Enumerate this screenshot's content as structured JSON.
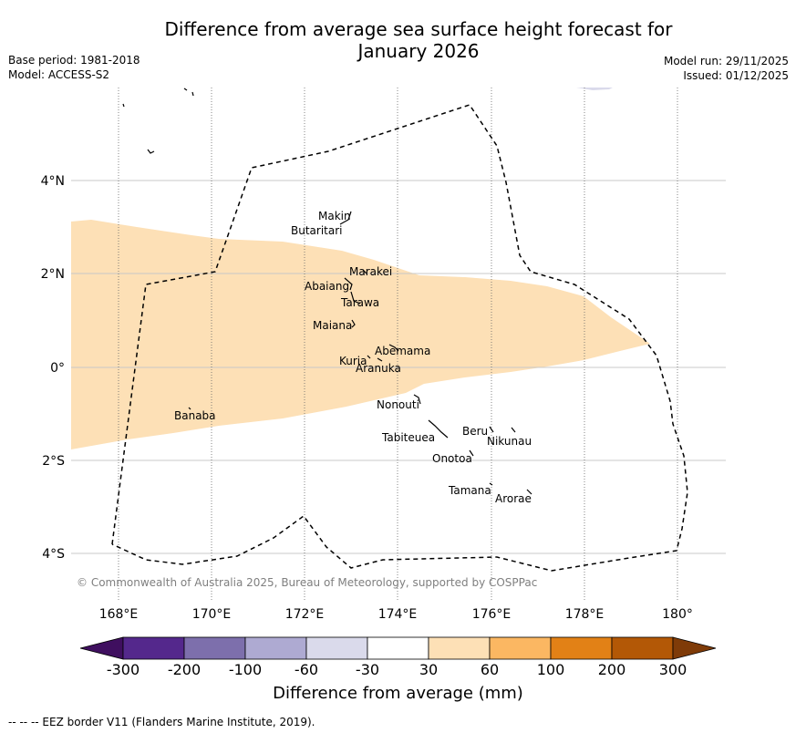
{
  "title": {
    "line1": "Difference from average sea surface height forecast for",
    "line2": "January 2026"
  },
  "meta": {
    "base_period": "Base period: 1981-2018",
    "model": "Model: ACCESS-S2",
    "model_run": "Model run: 29/11/2025",
    "issued": "Issued: 01/12/2025"
  },
  "map": {
    "lat_labels": [
      "4°N",
      "2°N",
      "0°",
      "2°S",
      "4°S"
    ],
    "lon_labels": [
      "168°E",
      "170°E",
      "172°E",
      "174°E",
      "176°E",
      "178°E",
      "180°"
    ],
    "islands": [
      "Makin",
      "Butaritari",
      "Marakei",
      "Abaiang",
      "Tarawa",
      "Maiana",
      "Abemama",
      "Kuria",
      "Aranuka",
      "Banaba",
      "Nonouti",
      "Beru",
      "Nikunau",
      "Tabiteuea",
      "Onotoa",
      "Tamana",
      "Arorae"
    ],
    "anomaly_fill_color": "#fde0b6",
    "copyright": "© Commonwealth of Australia 2025, Bureau of Meteorology, supported by COSPPac"
  },
  "colorbar": {
    "colors": [
      "#3f0f5f",
      "#54288c",
      "#7d6fac",
      "#aeaad2",
      "#dadaeb",
      "#ffffff",
      "#fde0b6",
      "#fbb762",
      "#e28116",
      "#b35806",
      "#7f3b08"
    ],
    "ticks": [
      "-300",
      "-200",
      "-100",
      "-60",
      "-30",
      "30",
      "60",
      "100",
      "200",
      "300"
    ],
    "label": "Difference from average (mm)"
  },
  "footnote": "--  --  -- EEZ border V11 (Flanders Marine Institute, 2019)."
}
